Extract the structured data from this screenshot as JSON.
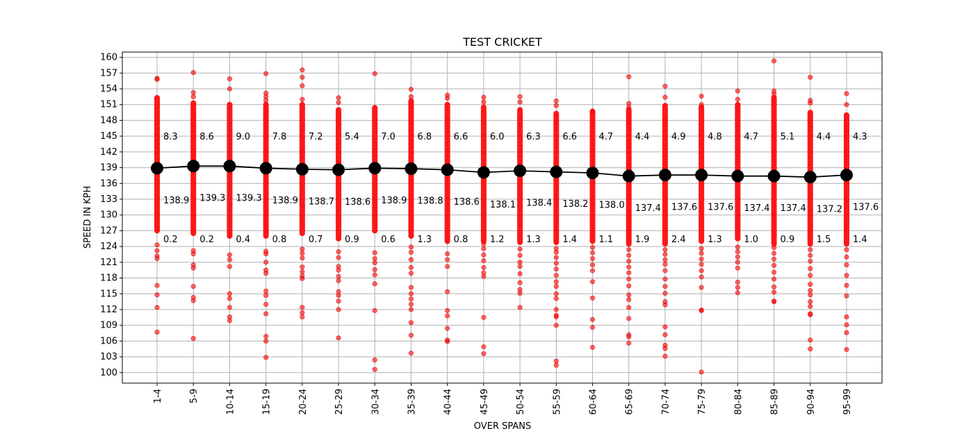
{
  "chart_data": {
    "type": "scatter",
    "title": "TEST CRICKET",
    "xlabel": "OVER SPANS",
    "ylabel": "SPEED IN KPH",
    "ylim": [
      98,
      161
    ],
    "yticks": [
      100,
      103,
      106,
      109,
      112,
      115,
      118,
      121,
      124,
      127,
      130,
      133,
      136,
      139,
      142,
      145,
      148,
      151,
      154,
      157,
      160
    ],
    "grid": true,
    "categories": [
      "1-4",
      "5-9",
      "10-14",
      "15-19",
      "20-24",
      "25-29",
      "30-34",
      "35-39",
      "40-44",
      "45-49",
      "50-54",
      "55-59",
      "60-64",
      "65-69",
      "70-74",
      "75-79",
      "80-84",
      "85-89",
      "90-94",
      "95-99"
    ],
    "mean_speed": [
      138.9,
      139.3,
      139.3,
      138.9,
      138.7,
      138.6,
      138.9,
      138.8,
      138.6,
      138.1,
      138.4,
      138.2,
      138.0,
      137.4,
      137.6,
      137.6,
      137.4,
      137.4,
      137.2,
      137.6
    ],
    "pct_above": [
      8.3,
      8.6,
      9.0,
      7.8,
      7.2,
      5.4,
      7.0,
      6.8,
      6.6,
      6.0,
      6.3,
      6.6,
      4.7,
      4.4,
      4.9,
      4.8,
      4.7,
      5.1,
      4.4,
      4.3
    ],
    "pct_below": [
      0.2,
      0.2,
      0.4,
      0.8,
      0.7,
      0.9,
      0.6,
      1.3,
      0.8,
      1.2,
      1.3,
      1.4,
      1.1,
      1.9,
      2.4,
      1.3,
      1.0,
      0.9,
      1.5,
      1.4
    ],
    "dense_range": [
      [
        127,
        152.3
      ],
      [
        126.5,
        151.3
      ],
      [
        126,
        151
      ],
      [
        126,
        151
      ],
      [
        126.5,
        151
      ],
      [
        125.5,
        150
      ],
      [
        127,
        150.4
      ],
      [
        126,
        151.7
      ],
      [
        125,
        151
      ],
      [
        125,
        150.5
      ],
      [
        124.8,
        150
      ],
      [
        124.8,
        149.3
      ],
      [
        125,
        149.6
      ],
      [
        124.5,
        150
      ],
      [
        124.5,
        150.8
      ],
      [
        125,
        150.5
      ],
      [
        125.5,
        151
      ],
      [
        124.5,
        152.3
      ],
      [
        124.5,
        149.5
      ],
      [
        124.5,
        149
      ]
    ],
    "outliers": [
      [
        107.7,
        112.4,
        114.8,
        116.6,
        121.7,
        122.2,
        123.2,
        124.3,
        155.8,
        156.0
      ],
      [
        106.5,
        113.7,
        114.3,
        116.4,
        119.9,
        120.5,
        122.6,
        123.2,
        152.5,
        153.3,
        157.1
      ],
      [
        109.9,
        110.6,
        112.4,
        114.1,
        115.0,
        120.2,
        121.5,
        122.4,
        154.0,
        155.9
      ],
      [
        102.9,
        106.0,
        106.9,
        111.2,
        113.0,
        114.7,
        115.5,
        118.9,
        119.5,
        121.0,
        122.6,
        123.1,
        151.8,
        152.5,
        153.2,
        156.9
      ],
      [
        110.6,
        111.4,
        112.4,
        117.9,
        118.4,
        119.2,
        120.1,
        121.8,
        122.7,
        123.5,
        152.0,
        154.6,
        156.2,
        157.6
      ],
      [
        106.6,
        112.0,
        113.6,
        114.7,
        115.4,
        117.5,
        118.3,
        119.5,
        120.2,
        121.9,
        123.0,
        151.4,
        152.3
      ],
      [
        100.6,
        102.4,
        111.8,
        116.9,
        118.6,
        119.6,
        120.9,
        121.7,
        122.8,
        156.9
      ],
      [
        103.7,
        107.1,
        109.5,
        112.0,
        113.0,
        114.0,
        115.0,
        116.2,
        118.9,
        120.0,
        121.5,
        122.9,
        123.9,
        152.5,
        153.9
      ],
      [
        105.9,
        106.2,
        108.4,
        110.8,
        111.8,
        115.4,
        120.2,
        121.5,
        122.6,
        152.2,
        152.8
      ],
      [
        103.6,
        104.9,
        110.5,
        118.3,
        119.0,
        120.0,
        121.3,
        122.4,
        123.6,
        124.5,
        151.5,
        152.4
      ],
      [
        112.4,
        115.1,
        115.8,
        117.1,
        118.8,
        120.2,
        121.0,
        122.3,
        123.5,
        151.5,
        152.5
      ],
      [
        101.4,
        102.2,
        109.0,
        110.6,
        110.9,
        112.0,
        114.1,
        115.0,
        116.4,
        117.3,
        118.5,
        119.7,
        120.8,
        121.9,
        122.9,
        123.6,
        150.8,
        151.7
      ],
      [
        104.8,
        108.6,
        110.1,
        114.2,
        117.3,
        119.4,
        120.5,
        121.7,
        122.8,
        123.8,
        149.8
      ],
      [
        105.6,
        106.8,
        107.2,
        110.3,
        112.4,
        113.9,
        114.8,
        116.5,
        117.8,
        119.0,
        120.1,
        121.2,
        122.3,
        123.4,
        150.5,
        151.2,
        156.3
      ],
      [
        103.1,
        104.6,
        105.2,
        107.2,
        108.7,
        112.9,
        113.5,
        115.1,
        116.4,
        117.8,
        119.4,
        120.6,
        121.5,
        122.5,
        123.4,
        152.4,
        154.5
      ],
      [
        100.1,
        111.8,
        111.9,
        116.2,
        118.2,
        119.4,
        120.6,
        121.6,
        122.7,
        123.6,
        151.0,
        152.6
      ],
      [
        115.2,
        116.2,
        117.2,
        119.9,
        121.0,
        122.0,
        123.0,
        123.9,
        152.0,
        153.6
      ],
      [
        113.5,
        113.6,
        115.3,
        116.3,
        117.8,
        119.1,
        120.4,
        121.6,
        122.7,
        123.8,
        153.0,
        153.6,
        159.3
      ],
      [
        104.5,
        106.2,
        111.0,
        111.2,
        112.6,
        113.5,
        114.8,
        115.6,
        116.8,
        118.5,
        119.8,
        121.2,
        122.3,
        123.4,
        151.3,
        151.8,
        156.2
      ],
      [
        104.4,
        107.6,
        109.1,
        110.6,
        114.6,
        116.6,
        118.5,
        120.5,
        122.0,
        123.4,
        151.0,
        153.1
      ]
    ],
    "colors": {
      "scatter": "#ff0000",
      "mean": "#000000",
      "grid": "#b0b0b0"
    }
  }
}
